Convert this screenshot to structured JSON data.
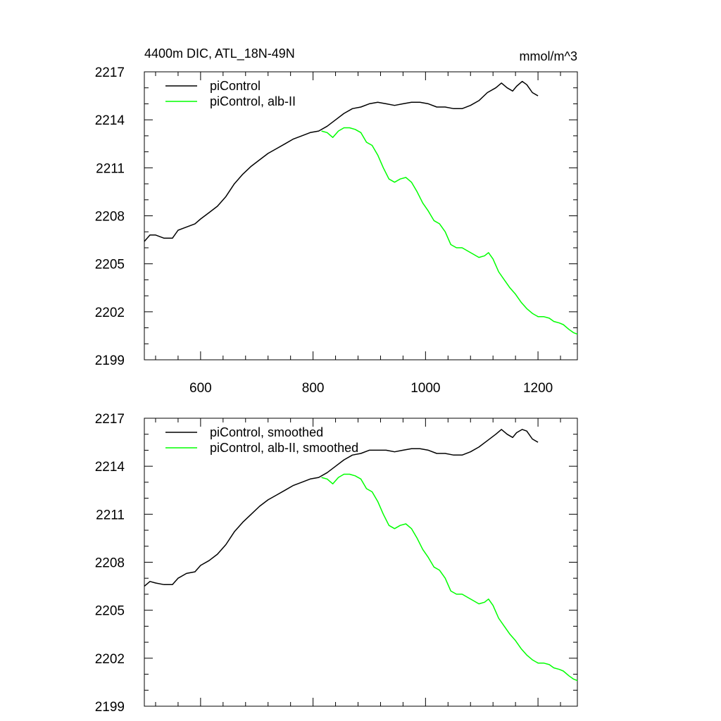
{
  "figure": {
    "title_left": "4400m DIC, ATL_18N-49N",
    "title_right": "mmol/m^3"
  },
  "chart_data": [
    {
      "type": "line",
      "xlim": [
        500,
        1270
      ],
      "ylim": [
        2199,
        2217
      ],
      "x_ticks": [
        600,
        800,
        1000,
        1200
      ],
      "x_tick_labels": [
        "600",
        "800",
        "1000",
        "1200"
      ],
      "y_ticks": [
        2199,
        2202,
        2205,
        2208,
        2211,
        2214,
        2217
      ],
      "y_tick_labels": [
        "2199",
        "2202",
        "2205",
        "2208",
        "2211",
        "2214",
        "2217"
      ],
      "grid": false,
      "legend_position": "top-left",
      "series": [
        {
          "name": "piControl",
          "color": "#000000",
          "points": [
            [
              500,
              2206.4
            ],
            [
              510,
              2206.8
            ],
            [
              520,
              2206.8
            ],
            [
              535,
              2206.6
            ],
            [
              550,
              2206.6
            ],
            [
              560,
              2207.1
            ],
            [
              575,
              2207.3
            ],
            [
              590,
              2207.5
            ],
            [
              600,
              2207.8
            ],
            [
              615,
              2208.2
            ],
            [
              630,
              2208.6
            ],
            [
              645,
              2209.2
            ],
            [
              660,
              2210.0
            ],
            [
              675,
              2210.6
            ],
            [
              690,
              2211.1
            ],
            [
              705,
              2211.5
            ],
            [
              720,
              2211.9
            ],
            [
              735,
              2212.2
            ],
            [
              750,
              2212.5
            ],
            [
              765,
              2212.8
            ],
            [
              780,
              2213.0
            ],
            [
              795,
              2213.2
            ],
            [
              810,
              2213.3
            ],
            [
              825,
              2213.6
            ],
            [
              840,
              2214.0
            ],
            [
              855,
              2214.4
            ],
            [
              870,
              2214.7
            ],
            [
              885,
              2214.8
            ],
            [
              900,
              2215.0
            ],
            [
              915,
              2215.1
            ],
            [
              930,
              2215.0
            ],
            [
              945,
              2214.9
            ],
            [
              960,
              2215.0
            ],
            [
              975,
              2215.1
            ],
            [
              990,
              2215.1
            ],
            [
              1005,
              2215.0
            ],
            [
              1020,
              2214.8
            ],
            [
              1035,
              2214.8
            ],
            [
              1050,
              2214.7
            ],
            [
              1065,
              2214.7
            ],
            [
              1080,
              2214.9
            ],
            [
              1095,
              2215.2
            ],
            [
              1110,
              2215.7
            ],
            [
              1125,
              2216.0
            ],
            [
              1135,
              2216.3
            ],
            [
              1145,
              2216.0
            ],
            [
              1155,
              2215.8
            ],
            [
              1162,
              2216.1
            ],
            [
              1172,
              2216.4
            ],
            [
              1180,
              2216.2
            ],
            [
              1190,
              2215.7
            ],
            [
              1200,
              2215.5
            ]
          ]
        },
        {
          "name": "piControl, alb-II",
          "color": "#00ff00",
          "points": [
            [
              815,
              2213.3
            ],
            [
              825,
              2213.2
            ],
            [
              835,
              2212.9
            ],
            [
              845,
              2213.3
            ],
            [
              855,
              2213.5
            ],
            [
              865,
              2213.5
            ],
            [
              875,
              2213.4
            ],
            [
              885,
              2213.2
            ],
            [
              895,
              2212.6
            ],
            [
              905,
              2212.4
            ],
            [
              915,
              2211.8
            ],
            [
              925,
              2211.0
            ],
            [
              935,
              2210.3
            ],
            [
              945,
              2210.1
            ],
            [
              955,
              2210.3
            ],
            [
              965,
              2210.4
            ],
            [
              975,
              2210.1
            ],
            [
              985,
              2209.5
            ],
            [
              995,
              2208.8
            ],
            [
              1005,
              2208.3
            ],
            [
              1015,
              2207.7
            ],
            [
              1025,
              2207.5
            ],
            [
              1035,
              2207.0
            ],
            [
              1045,
              2206.2
            ],
            [
              1055,
              2206.0
            ],
            [
              1065,
              2206.0
            ],
            [
              1075,
              2205.8
            ],
            [
              1085,
              2205.6
            ],
            [
              1095,
              2205.4
            ],
            [
              1105,
              2205.5
            ],
            [
              1112,
              2205.7
            ],
            [
              1120,
              2205.3
            ],
            [
              1130,
              2204.5
            ],
            [
              1140,
              2204.0
            ],
            [
              1150,
              2203.5
            ],
            [
              1160,
              2203.1
            ],
            [
              1170,
              2202.6
            ],
            [
              1180,
              2202.2
            ],
            [
              1190,
              2201.9
            ],
            [
              1200,
              2201.7
            ],
            [
              1210,
              2201.7
            ],
            [
              1220,
              2201.6
            ],
            [
              1228,
              2201.4
            ],
            [
              1238,
              2201.3
            ],
            [
              1245,
              2201.2
            ],
            [
              1255,
              2200.9
            ],
            [
              1263,
              2200.7
            ],
            [
              1270,
              2200.6
            ]
          ]
        }
      ]
    },
    {
      "type": "line",
      "xlim": [
        500,
        1270
      ],
      "ylim": [
        2199,
        2217
      ],
      "x_ticks": [
        600,
        800,
        1000,
        1200
      ],
      "y_ticks": [
        2199,
        2202,
        2205,
        2208,
        2211,
        2214,
        2217
      ],
      "y_tick_labels": [
        "2199",
        "2202",
        "2205",
        "2208",
        "2211",
        "2214",
        "2217"
      ],
      "grid": false,
      "legend_position": "top-left",
      "series": [
        {
          "name": "piControl, smoothed",
          "color": "#000000",
          "points": [
            [
              500,
              2206.5
            ],
            [
              510,
              2206.8
            ],
            [
              520,
              2206.7
            ],
            [
              535,
              2206.6
            ],
            [
              550,
              2206.6
            ],
            [
              560,
              2207.0
            ],
            [
              575,
              2207.3
            ],
            [
              590,
              2207.4
            ],
            [
              600,
              2207.8
            ],
            [
              615,
              2208.1
            ],
            [
              630,
              2208.5
            ],
            [
              645,
              2209.1
            ],
            [
              660,
              2209.9
            ],
            [
              675,
              2210.5
            ],
            [
              690,
              2211.0
            ],
            [
              705,
              2211.5
            ],
            [
              720,
              2211.9
            ],
            [
              735,
              2212.2
            ],
            [
              750,
              2212.5
            ],
            [
              765,
              2212.8
            ],
            [
              780,
              2213.0
            ],
            [
              795,
              2213.2
            ],
            [
              810,
              2213.3
            ],
            [
              825,
              2213.6
            ],
            [
              840,
              2214.0
            ],
            [
              855,
              2214.4
            ],
            [
              870,
              2214.7
            ],
            [
              885,
              2214.8
            ],
            [
              900,
              2215.0
            ],
            [
              915,
              2215.0
            ],
            [
              930,
              2215.0
            ],
            [
              945,
              2214.9
            ],
            [
              960,
              2215.0
            ],
            [
              975,
              2215.1
            ],
            [
              990,
              2215.1
            ],
            [
              1005,
              2215.0
            ],
            [
              1020,
              2214.8
            ],
            [
              1035,
              2214.8
            ],
            [
              1050,
              2214.7
            ],
            [
              1065,
              2214.7
            ],
            [
              1080,
              2214.9
            ],
            [
              1095,
              2215.2
            ],
            [
              1110,
              2215.6
            ],
            [
              1125,
              2216.0
            ],
            [
              1135,
              2216.3
            ],
            [
              1145,
              2216.0
            ],
            [
              1155,
              2215.8
            ],
            [
              1162,
              2216.1
            ],
            [
              1172,
              2216.3
            ],
            [
              1180,
              2216.2
            ],
            [
              1190,
              2215.7
            ],
            [
              1200,
              2215.5
            ]
          ]
        },
        {
          "name": "piControl, alb-II, smoothed",
          "color": "#00ff00",
          "points": [
            [
              815,
              2213.3
            ],
            [
              825,
              2213.2
            ],
            [
              835,
              2212.9
            ],
            [
              845,
              2213.3
            ],
            [
              855,
              2213.5
            ],
            [
              865,
              2213.5
            ],
            [
              875,
              2213.4
            ],
            [
              885,
              2213.2
            ],
            [
              895,
              2212.6
            ],
            [
              905,
              2212.4
            ],
            [
              915,
              2211.8
            ],
            [
              925,
              2211.0
            ],
            [
              935,
              2210.3
            ],
            [
              945,
              2210.1
            ],
            [
              955,
              2210.3
            ],
            [
              965,
              2210.4
            ],
            [
              975,
              2210.1
            ],
            [
              985,
              2209.5
            ],
            [
              995,
              2208.8
            ],
            [
              1005,
              2208.3
            ],
            [
              1015,
              2207.7
            ],
            [
              1025,
              2207.5
            ],
            [
              1035,
              2207.0
            ],
            [
              1045,
              2206.2
            ],
            [
              1055,
              2206.0
            ],
            [
              1065,
              2206.0
            ],
            [
              1075,
              2205.8
            ],
            [
              1085,
              2205.6
            ],
            [
              1095,
              2205.4
            ],
            [
              1105,
              2205.5
            ],
            [
              1112,
              2205.7
            ],
            [
              1120,
              2205.3
            ],
            [
              1130,
              2204.5
            ],
            [
              1140,
              2204.0
            ],
            [
              1150,
              2203.5
            ],
            [
              1160,
              2203.1
            ],
            [
              1170,
              2202.6
            ],
            [
              1180,
              2202.2
            ],
            [
              1190,
              2201.9
            ],
            [
              1200,
              2201.7
            ],
            [
              1210,
              2201.7
            ],
            [
              1220,
              2201.6
            ],
            [
              1228,
              2201.4
            ],
            [
              1238,
              2201.3
            ],
            [
              1245,
              2201.2
            ],
            [
              1255,
              2200.9
            ],
            [
              1263,
              2200.7
            ],
            [
              1270,
              2200.6
            ]
          ]
        }
      ]
    }
  ]
}
